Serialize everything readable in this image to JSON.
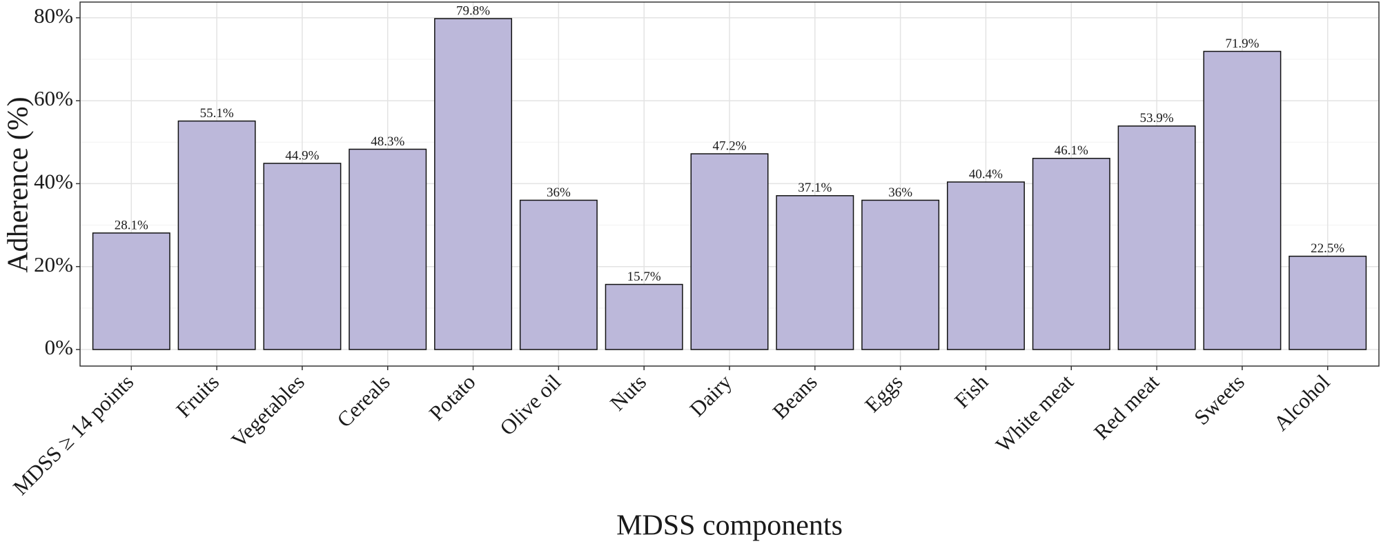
{
  "chart_data": {
    "type": "bar",
    "x_label": "MDSS components",
    "y_label": "Adherence (%)",
    "categories": [
      "MDSS ≥ 14 points",
      "Fruits",
      "Vegetables",
      "Cereals",
      "Potato",
      "Olive oil",
      "Nuts",
      "Dairy",
      "Beans",
      "Eggs",
      "Fish",
      "White meat",
      "Red meat",
      "Sweets",
      "Alcohol"
    ],
    "values": [
      28.1,
      55.1,
      44.9,
      48.3,
      79.8,
      36,
      15.7,
      47.2,
      37.1,
      36,
      40.4,
      46.1,
      53.9,
      71.9,
      22.5
    ],
    "value_labels": [
      "28.1%",
      "55.1%",
      "44.9%",
      "48.3%",
      "79.8%",
      "36%",
      "15.7%",
      "47.2%",
      "37.1%",
      "36%",
      "40.4%",
      "46.1%",
      "53.9%",
      "71.9%",
      "22.5%"
    ],
    "color": "#bcb8da",
    "ylim": [
      -3.99,
      83.79
    ],
    "yticks": [
      {
        "value": 0,
        "label": "0%"
      },
      {
        "value": 20,
        "label": "20%"
      },
      {
        "value": 40,
        "label": "40%"
      },
      {
        "value": 60,
        "label": "60%"
      },
      {
        "value": 80,
        "label": "80%"
      }
    ],
    "minor_yticks": [
      10,
      30,
      50,
      70
    ],
    "grid": true
  }
}
